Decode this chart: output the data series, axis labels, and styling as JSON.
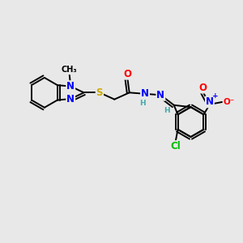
{
  "background_color": "#e8e8e8",
  "fig_size": [
    3.0,
    3.0
  ],
  "dpi": 100,
  "atom_colors": {
    "C": "#000000",
    "N": "#0000ff",
    "O": "#ff0000",
    "S": "#ccaa00",
    "Cl": "#00bb00",
    "H": "#44aaaa"
  },
  "bond_color": "#000000",
  "bond_width": 1.4,
  "font_size_atoms": 8.5,
  "font_size_small": 6.5,
  "xlim": [
    0,
    10
  ],
  "ylim": [
    0,
    10
  ]
}
